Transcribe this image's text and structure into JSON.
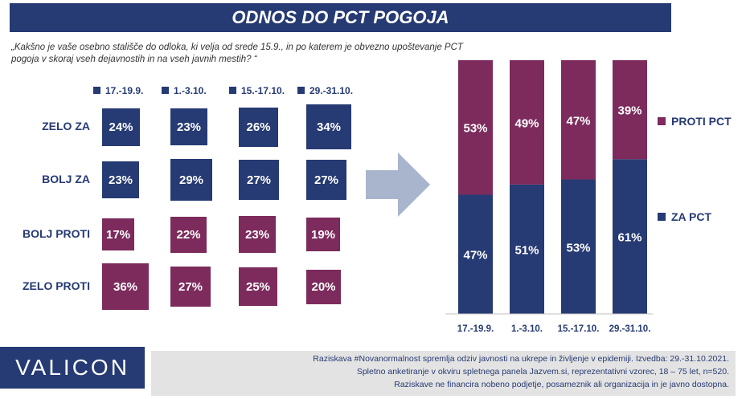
{
  "title": "ODNOS DO PCT POGOJA",
  "question": "„Kakšno je vaše osebno stališče do odloka, ki velja od srede 15.9., in po katerem je obvezno upoštevanje PCT pogoja v skoraj vseh dejavnostih in na vseh javnih mestih? “",
  "colors": {
    "navy": "#263a73",
    "plum": "#7c2b5c",
    "arrow": "#a9b5cc"
  },
  "logo": "VALICON",
  "footer": {
    "line1": "Raziskava #Novanormalnost spremlja odziv javnosti na ukrepe in življenje v epidemiji. Izvedba: 29.-31.10.2021.",
    "line2": "Spletno anketiranje v okviru spletnega panela Jazvem.si, reprezentativni vzorec,  18 – 75 let, n=520.",
    "line3": "Raziskave ne financira nobeno podjetje, posameznik ali organizacija in je javno dostopna."
  },
  "chart_data": [
    {
      "type": "table",
      "categories": [
        "17.-19.9.",
        "1.-3.10.",
        "15.-17.10.",
        "29.-31.10."
      ],
      "rows": [
        "ZELO ZA",
        "BOLJ ZA",
        "BOLJ PROTI",
        "ZELO PROTI"
      ],
      "row_colors": [
        "#263a73",
        "#263a73",
        "#7c2b5c",
        "#7c2b5c"
      ],
      "values": [
        [
          24,
          23,
          26,
          34
        ],
        [
          23,
          29,
          27,
          27
        ],
        [
          17,
          22,
          23,
          19
        ],
        [
          36,
          27,
          25,
          20
        ]
      ],
      "value_suffix": "%"
    },
    {
      "type": "bar",
      "stacked": true,
      "categories": [
        "17.-19.9.",
        "1.-3.10.",
        "15.-17.10.",
        "29.-31.10."
      ],
      "series": [
        {
          "name": "ZA PCT",
          "values": [
            47,
            51,
            53,
            61
          ],
          "color": "#263a73"
        },
        {
          "name": "PROTI PCT",
          "values": [
            53,
            49,
            47,
            39
          ],
          "color": "#7c2b5c"
        }
      ],
      "ylim": [
        0,
        100
      ],
      "value_suffix": "%",
      "legend": "right"
    }
  ]
}
